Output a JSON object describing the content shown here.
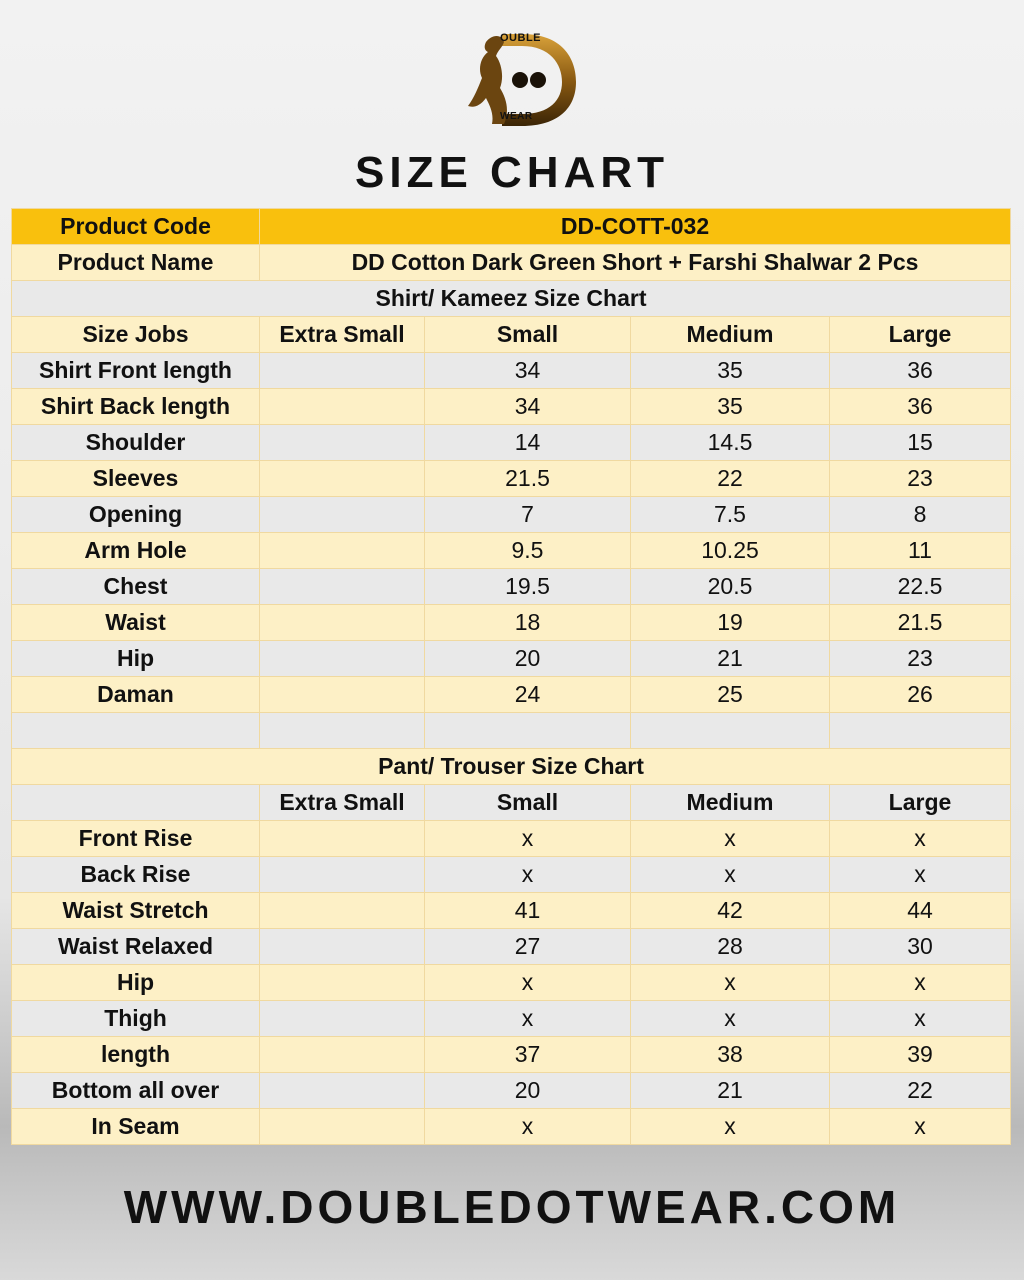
{
  "brand": {
    "logo_top": "OUBLE",
    "logo_bottom": "WEAR"
  },
  "title": "SIZE CHART",
  "product": {
    "code_label": "Product Code",
    "code_value": "DD-COTT-032",
    "name_label": "Product Name",
    "name_value": "DD Cotton Dark Green Short + Farshi Shalwar 2 Pcs"
  },
  "shirt": {
    "title": "Shirt/ Kameez Size Chart",
    "headers": [
      "Size Jobs",
      "Extra Small",
      "Small",
      "Medium",
      "Large"
    ],
    "rows": [
      [
        "Shirt Front length",
        "",
        "34",
        "35",
        "36"
      ],
      [
        "Shirt Back length",
        "",
        "34",
        "35",
        "36"
      ],
      [
        "Shoulder",
        "",
        "14",
        "14.5",
        "15"
      ],
      [
        "Sleeves",
        "",
        "21.5",
        "22",
        "23"
      ],
      [
        "Opening",
        "",
        "7",
        "7.5",
        "8"
      ],
      [
        "Arm Hole",
        "",
        "9.5",
        "10.25",
        "11"
      ],
      [
        "Chest",
        "",
        "19.5",
        "20.5",
        "22.5"
      ],
      [
        "Waist",
        "",
        "18",
        "19",
        "21.5"
      ],
      [
        "Hip",
        "",
        "20",
        "21",
        "23"
      ],
      [
        "Daman",
        "",
        "24",
        "25",
        "26"
      ]
    ]
  },
  "pant": {
    "title": "Pant/ Trouser Size Chart",
    "headers": [
      "",
      "Extra Small",
      "Small",
      "Medium",
      "Large"
    ],
    "rows": [
      [
        "Front Rise",
        "",
        "x",
        "x",
        "x"
      ],
      [
        "Back Rise",
        "",
        "x",
        "x",
        "x"
      ],
      [
        "Waist Stretch",
        "",
        "41",
        "42",
        "44"
      ],
      [
        "Waist Relaxed",
        "",
        "27",
        "28",
        "30"
      ],
      [
        "Hip",
        "",
        "x",
        "x",
        "x"
      ],
      [
        "Thigh",
        "",
        "x",
        "x",
        "x"
      ],
      [
        "length",
        "",
        "37",
        "38",
        "39"
      ],
      [
        "Bottom all over",
        "",
        "20",
        "21",
        "22"
      ],
      [
        "In Seam",
        "",
        "x",
        "x",
        "x"
      ]
    ]
  },
  "footer": "WWW.DOUBLEDOTWEAR.COM"
}
